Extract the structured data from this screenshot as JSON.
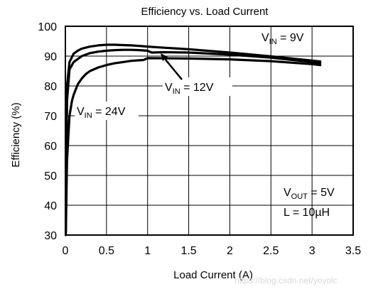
{
  "chart_data": {
    "type": "line",
    "title": "Efficiency vs. Load Current",
    "xlabel": "Load Current (A)",
    "ylabel": "Efficiency (%)",
    "xlim": [
      0,
      3.5
    ],
    "ylim": [
      30,
      100
    ],
    "xticks": [
      "0",
      "0.5",
      "1",
      "1.5",
      "2",
      "2.5",
      "3",
      "3.5"
    ],
    "yticks": [
      "30",
      "40",
      "50",
      "60",
      "70",
      "80",
      "90",
      "100"
    ],
    "grid": true,
    "series": [
      {
        "name": "VIN = 9V",
        "x": [
          0.005,
          0.02,
          0.05,
          0.1,
          0.15,
          0.2,
          0.3,
          0.4,
          0.5,
          0.6,
          0.7,
          0.8,
          0.9,
          1.0,
          1.2,
          1.5,
          2.0,
          2.5,
          3.0,
          3.1
        ],
        "y": [
          32,
          80,
          88,
          90.8,
          91.8,
          92.5,
          93.2,
          93.6,
          93.8,
          93.8,
          93.7,
          93.6,
          93.4,
          93.2,
          92.8,
          92.3,
          91.2,
          89.9,
          88.5,
          88.2
        ]
      },
      {
        "name": "VIN = 12V",
        "x": [
          0.005,
          0.02,
          0.05,
          0.1,
          0.15,
          0.2,
          0.3,
          0.4,
          0.5,
          0.6,
          0.7,
          0.8,
          0.9,
          1.0,
          1.05,
          1.2,
          1.5,
          2.0,
          2.5,
          3.0,
          3.1
        ],
        "y": [
          31,
          75,
          85.5,
          88,
          89,
          90,
          91,
          91.5,
          91.8,
          92,
          92.1,
          92.1,
          92,
          91.8,
          91.2,
          91.3,
          91.2,
          90.5,
          89.5,
          88,
          87.7
        ]
      },
      {
        "name": "VIN = 24V",
        "x": [
          0.005,
          0.02,
          0.05,
          0.08,
          0.1,
          0.15,
          0.2,
          0.25,
          0.3,
          0.4,
          0.5,
          0.6,
          0.7,
          0.8,
          0.9,
          0.95,
          1.0,
          1.5,
          2.0,
          2.5,
          3.0,
          3.1
        ],
        "y": [
          30,
          55,
          70,
          75,
          77,
          80.5,
          82.5,
          84,
          85,
          86.2,
          87,
          87.6,
          88,
          88.4,
          88.6,
          88.7,
          89.3,
          89.2,
          88.9,
          88.3,
          87.3,
          87
        ]
      }
    ],
    "annotations": [
      {
        "main": "V",
        "sub": "IN",
        "rest": " = 9V"
      },
      {
        "main": "V",
        "sub": "IN",
        "rest": " = 12V"
      },
      {
        "main": "V",
        "sub": "IN",
        "rest": " = 24V"
      },
      {
        "main": "V",
        "sub": "OUT",
        "rest": " = 5V"
      },
      {
        "main": "L = 10µH",
        "sub": "",
        "rest": ""
      }
    ]
  },
  "watermark": "https://blog.csdn.net/yoyolc"
}
